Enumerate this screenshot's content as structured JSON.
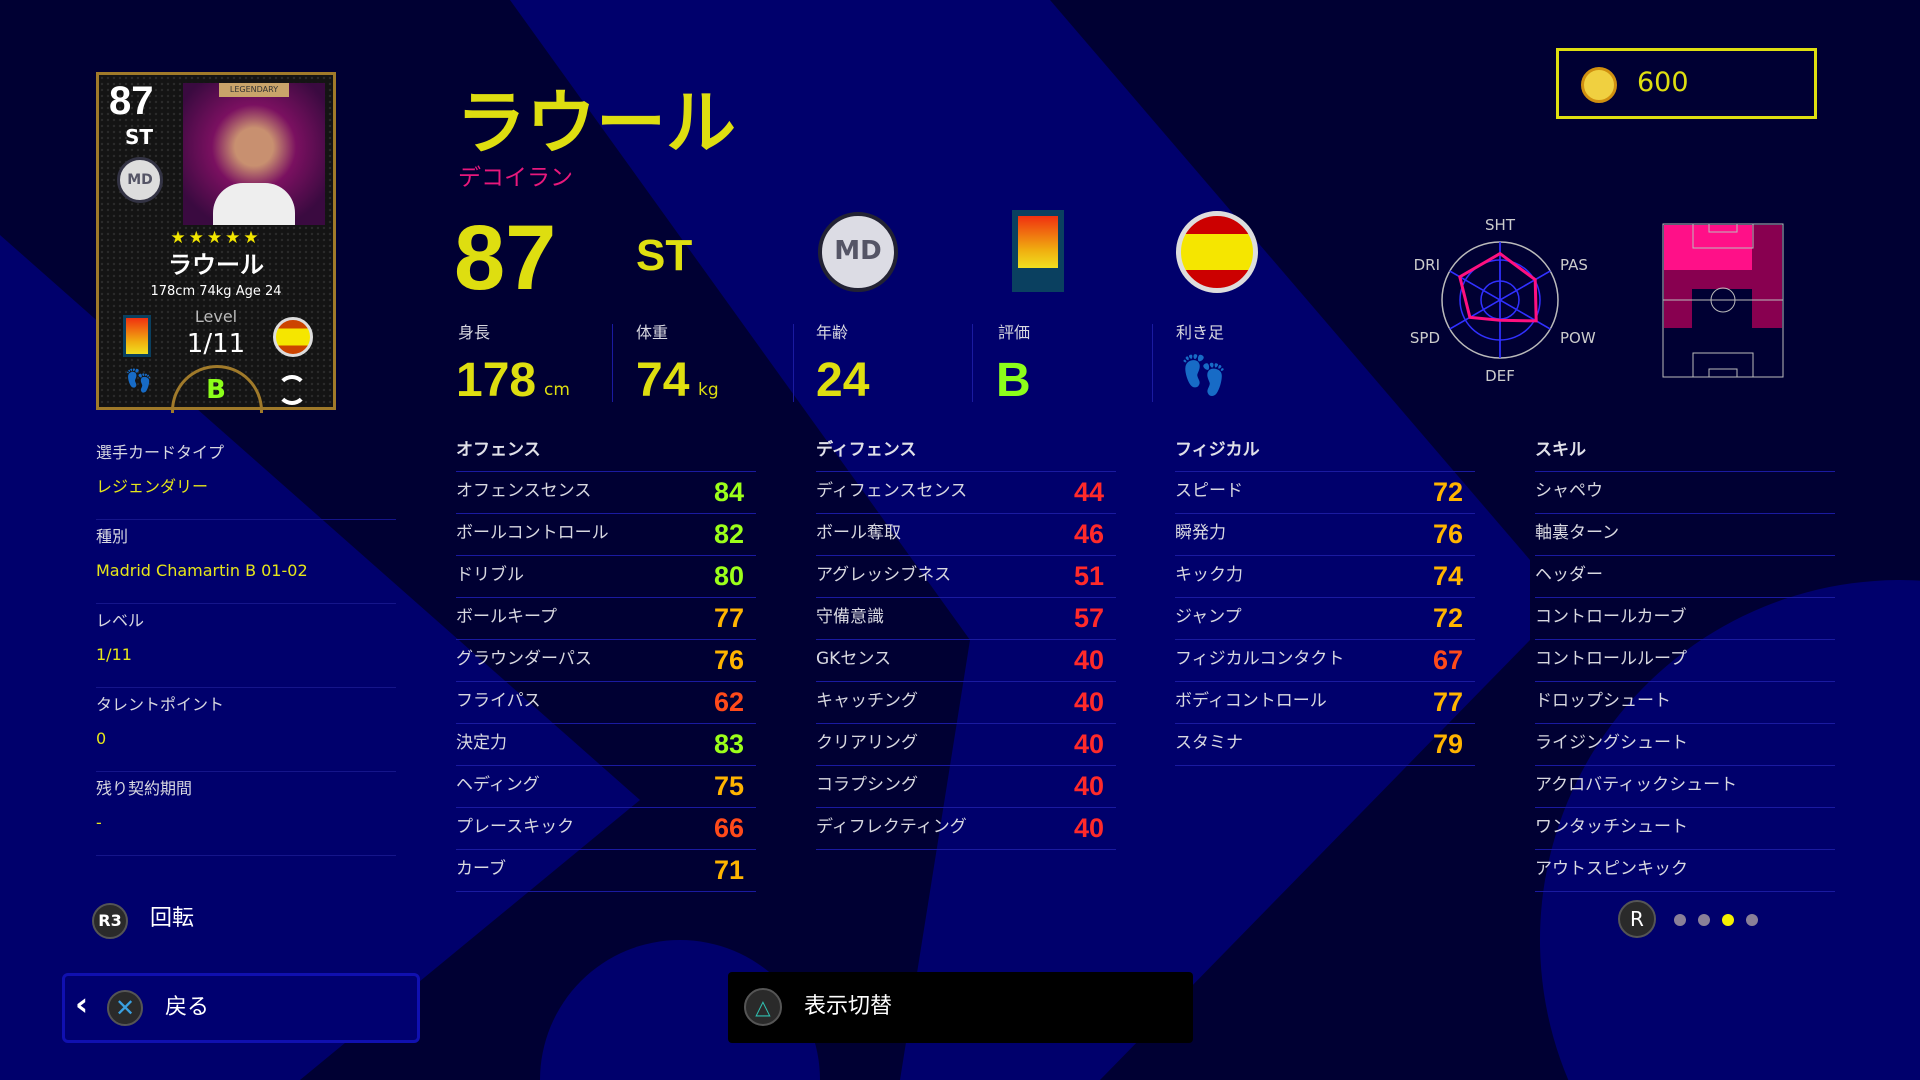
{
  "currency": {
    "icon": "efootball-coin-icon",
    "amount": "600"
  },
  "card": {
    "rating": "87",
    "position": "ST",
    "stars": "★★★★★",
    "name": "ラウール",
    "info": "178cm  74kg  Age 24",
    "level_label": "Level",
    "level": "1/11",
    "grade": "B",
    "banner": "LEGENDARY"
  },
  "player": {
    "name": "ラウール",
    "style": "デコイラン",
    "rating": "87",
    "position": "ST",
    "height_label": "身長",
    "height": "178",
    "height_unit": "cm",
    "weight_label": "体重",
    "weight": "74",
    "weight_unit": "kg",
    "age_label": "年齢",
    "age": "24",
    "grade_label": "評価",
    "grade": "B",
    "foot_label": "利き足"
  },
  "radar": {
    "labels": [
      "SHT",
      "PAS",
      "POW",
      "DEF",
      "SPD",
      "DRI"
    ],
    "values": [
      0.8,
      0.7,
      0.72,
      0.35,
      0.6,
      0.8
    ]
  },
  "info": [
    {
      "label": "選手カードタイプ",
      "value": "レジェンダリー"
    },
    {
      "label": "種別",
      "value": "Madrid Chamartin B 01-02"
    },
    {
      "label": "レベル",
      "value": "1/11"
    },
    {
      "label": "タレントポイント",
      "value": "0"
    },
    {
      "label": "残り契約期間",
      "value": "-"
    }
  ],
  "offense": {
    "title": "オフェンス",
    "rows": [
      [
        "オフェンスセンス",
        "84"
      ],
      [
        "ボールコントロール",
        "82"
      ],
      [
        "ドリブル",
        "80"
      ],
      [
        "ボールキープ",
        "77"
      ],
      [
        "グラウンダーパス",
        "76"
      ],
      [
        "フライパス",
        "62"
      ],
      [
        "決定力",
        "83"
      ],
      [
        "ヘディング",
        "75"
      ],
      [
        "プレースキック",
        "66"
      ],
      [
        "カーブ",
        "71"
      ]
    ]
  },
  "defense": {
    "title": "ディフェンス",
    "rows": [
      [
        "ディフェンスセンス",
        "44"
      ],
      [
        "ボール奪取",
        "46"
      ],
      [
        "アグレッシブネス",
        "51"
      ],
      [
        "守備意識",
        "57"
      ],
      [
        "GKセンス",
        "40"
      ],
      [
        "キャッチング",
        "40"
      ],
      [
        "クリアリング",
        "40"
      ],
      [
        "コラプシング",
        "40"
      ],
      [
        "ディフレクティング",
        "40"
      ]
    ]
  },
  "physical": {
    "title": "フィジカル",
    "rows": [
      [
        "スピード",
        "72"
      ],
      [
        "瞬発力",
        "76"
      ],
      [
        "キック力",
        "74"
      ],
      [
        "ジャンプ",
        "72"
      ],
      [
        "フィジカルコンタクト",
        "67"
      ],
      [
        "ボディコントロール",
        "77"
      ],
      [
        "スタミナ",
        "79"
      ]
    ]
  },
  "skills": {
    "title": "スキル",
    "rows": [
      "シャペウ",
      "軸裏ターン",
      "ヘッダー",
      "コントロールカーブ",
      "コントロールループ",
      "ドロップシュート",
      "ライジングシュート",
      "アクロバティックシュート",
      "ワンタッチシュート",
      "アウトスピンキック"
    ]
  },
  "colors": {
    "accent": "#dede10",
    "style": "#e8187c",
    "high": "#9cff1a",
    "mid": "#ffb400",
    "low": "#ff4a1a",
    "verylow": "#ff2a2a"
  },
  "footer": {
    "rotate_key": "R3",
    "rotate_label": "回転",
    "back_label": "戻る",
    "toggle_label": "表示切替",
    "page_key": "R",
    "pages": 4,
    "current_page": 3
  }
}
